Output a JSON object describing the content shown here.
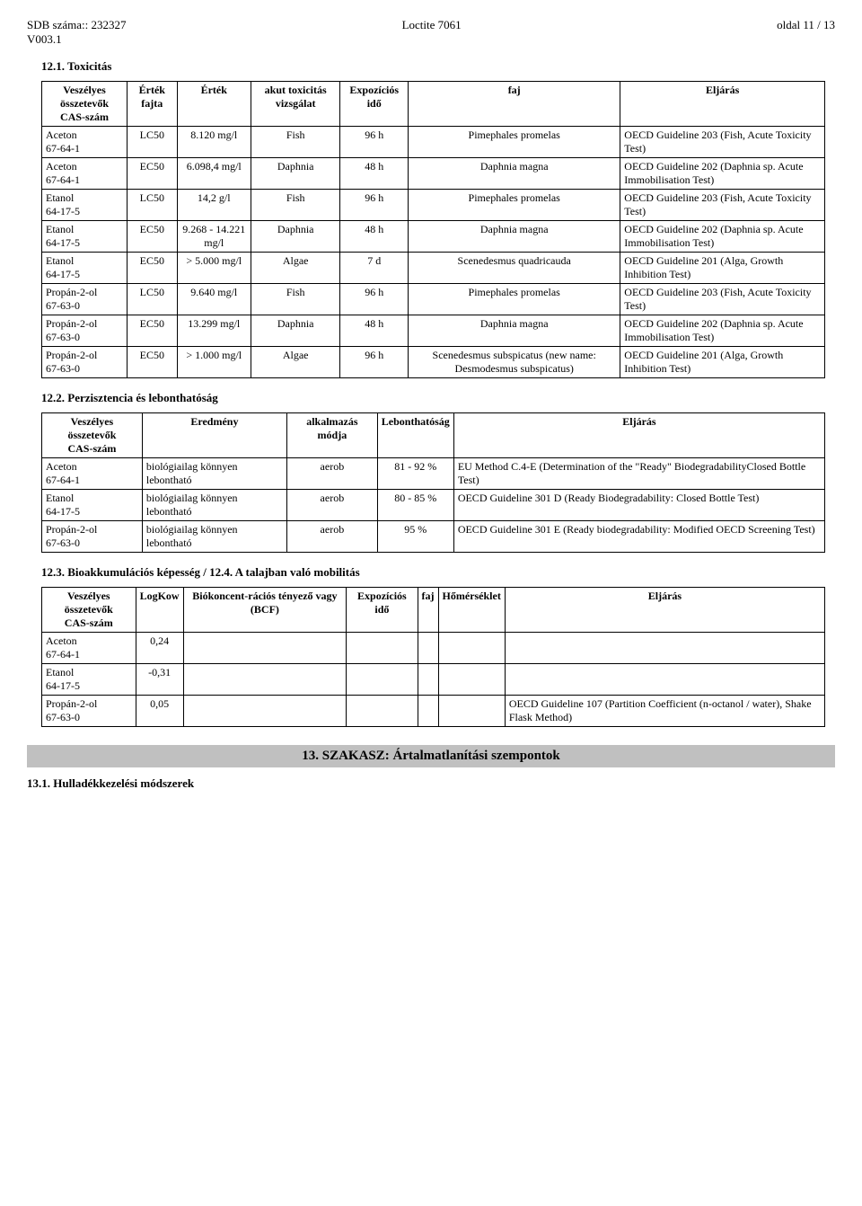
{
  "header": {
    "sdb_label": "SDB száma:: 232327",
    "version": "V003.1",
    "product": "Loctite 7061",
    "page": "oldal 11 / 13"
  },
  "section_12_1": {
    "title": "12.1. Toxicitás",
    "columns": [
      "Veszélyes összetevők\nCAS-szám",
      "Érték fajta",
      "Érték",
      "akut toxicitás vizsgálat",
      "Expozíciós idő",
      "faj",
      "Eljárás"
    ],
    "rows": [
      [
        "Aceton\n67-64-1",
        "LC50",
        "8.120 mg/l",
        "Fish",
        "96 h",
        "Pimephales promelas",
        "OECD Guideline 203 (Fish, Acute Toxicity Test)"
      ],
      [
        "Aceton\n67-64-1",
        "EC50",
        "6.098,4 mg/l",
        "Daphnia",
        "48 h",
        "Daphnia magna",
        "OECD Guideline 202 (Daphnia sp. Acute Immobilisation Test)"
      ],
      [
        "Etanol\n64-17-5",
        "LC50",
        "14,2 g/l",
        "Fish",
        "96 h",
        "Pimephales promelas",
        "OECD Guideline 203 (Fish, Acute Toxicity Test)"
      ],
      [
        "Etanol\n64-17-5",
        "EC50",
        "9.268 - 14.221 mg/l",
        "Daphnia",
        "48 h",
        "Daphnia magna",
        "OECD Guideline 202 (Daphnia sp. Acute Immobilisation Test)"
      ],
      [
        "Etanol\n64-17-5",
        "EC50",
        "> 5.000 mg/l",
        "Algae",
        "7 d",
        "Scenedesmus quadricauda",
        "OECD Guideline 201 (Alga, Growth Inhibition Test)"
      ],
      [
        "Propán-2-ol\n67-63-0",
        "LC50",
        "9.640 mg/l",
        "Fish",
        "96 h",
        "Pimephales promelas",
        "OECD Guideline 203 (Fish, Acute Toxicity Test)"
      ],
      [
        "Propán-2-ol\n67-63-0",
        "EC50",
        "13.299 mg/l",
        "Daphnia",
        "48 h",
        "Daphnia magna",
        "OECD Guideline 202 (Daphnia sp. Acute Immobilisation Test)"
      ],
      [
        "Propán-2-ol\n67-63-0",
        "EC50",
        "> 1.000 mg/l",
        "Algae",
        "96 h",
        "Scenedesmus subspicatus (new name: Desmodesmus subspicatus)",
        "OECD Guideline 201 (Alga, Growth Inhibition Test)"
      ]
    ]
  },
  "section_12_2": {
    "title": "12.2. Perzisztencia és lebonthatóság",
    "columns": [
      "Veszélyes összetevők\nCAS-szám",
      "Eredmény",
      "alkalmazás módja",
      "Lebonthatóság",
      "Eljárás"
    ],
    "rows": [
      [
        "Aceton\n67-64-1",
        "biológiailag könnyen lebontható",
        "aerob",
        "81 - 92 %",
        "EU Method C.4-E (Determination of the \"Ready\" BiodegradabilityClosed Bottle Test)"
      ],
      [
        "Etanol\n64-17-5",
        "biológiailag könnyen lebontható",
        "aerob",
        "80 - 85 %",
        "OECD Guideline 301 D (Ready Biodegradability: Closed Bottle Test)"
      ],
      [
        "Propán-2-ol\n67-63-0",
        "biológiailag könnyen lebontható",
        "aerob",
        "95 %",
        "OECD Guideline 301 E (Ready biodegradability: Modified OECD Screening Test)"
      ]
    ]
  },
  "section_12_3": {
    "title": "12.3. Bioakkumulációs képesség / 12.4. A talajban való mobilitás",
    "columns": [
      "Veszélyes összetevők\nCAS-szám",
      "LogKow",
      "Biókoncent-rációs tényező vagy (BCF)",
      "Expozíciós idő",
      "faj",
      "Hőmérséklet",
      "Eljárás"
    ],
    "rows": [
      [
        "Aceton\n67-64-1",
        "0,24",
        "",
        "",
        "",
        "",
        ""
      ],
      [
        "Etanol\n64-17-5",
        "-0,31",
        "",
        "",
        "",
        "",
        ""
      ],
      [
        "Propán-2-ol\n67-63-0",
        "0,05",
        "",
        "",
        "",
        "",
        "OECD Guideline 107 (Partition Coefficient (n-octanol / water), Shake Flask Method)"
      ]
    ]
  },
  "section_13_banner": "13. SZAKASZ: Ártalmatlanítási szempontok",
  "section_13_1": "13.1. Hulladékkezelési módszerek"
}
